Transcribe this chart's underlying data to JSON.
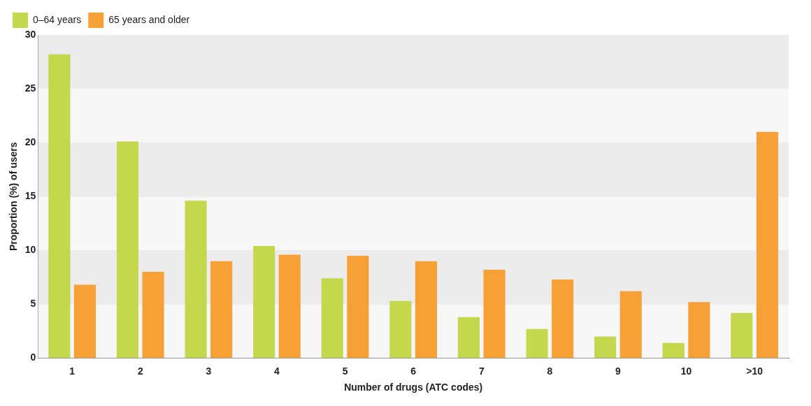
{
  "chart_data": {
    "type": "bar",
    "xlabel": "Number of drugs (ATC codes)",
    "ylabel": "Proportion (%) of users",
    "categories": [
      "1",
      "2",
      "3",
      "4",
      "5",
      "6",
      "7",
      "8",
      "9",
      "10",
      ">10"
    ],
    "series": [
      {
        "name": "0–64 years",
        "color": "#c3d84c",
        "values": [
          28.2,
          20.1,
          14.6,
          10.4,
          7.4,
          5.3,
          3.8,
          2.7,
          2.0,
          1.4,
          4.2
        ]
      },
      {
        "name": "65 years and older",
        "color": "#f7a035",
        "values": [
          6.8,
          8.0,
          9.0,
          9.6,
          9.5,
          9.0,
          8.2,
          7.3,
          6.2,
          5.2,
          21.0
        ]
      }
    ],
    "ylim": [
      0,
      30
    ],
    "yticks": [
      0,
      5,
      10,
      15,
      20,
      25,
      30
    ],
    "grid": "y",
    "legend": "top left"
  }
}
